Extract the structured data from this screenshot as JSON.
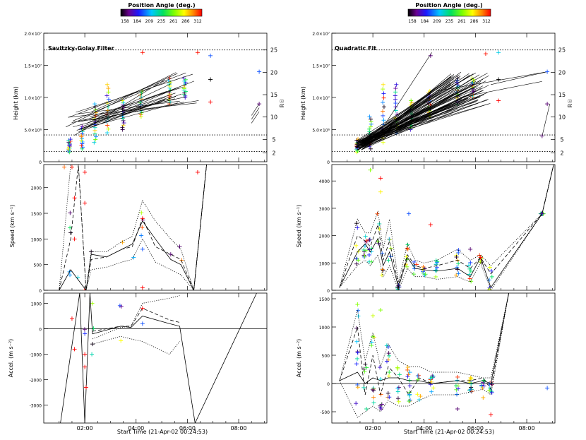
{
  "colorbar": {
    "title": "Position Angle (deg.)",
    "ticks": [
      "158",
      "184",
      "209",
      "235",
      "261",
      "286",
      "312"
    ]
  },
  "panels": {
    "left": {
      "title": "Savitzky-Golay Filter",
      "xlabel": "Start Time (21-Apr-02 00:24:53)",
      "xticks": [
        "02:00",
        "04:00",
        "06:00",
        "08:00"
      ],
      "height": {
        "ylabel": "Height (km)",
        "yticks": [
          "5.0×10⁶",
          "1.0×10⁷",
          "1.5×10⁷",
          "2.0×10⁷"
        ],
        "y0": "0",
        "rlabel": "R☉",
        "rticks": [
          "2",
          "5",
          "10",
          "15",
          "20",
          "25"
        ]
      },
      "speed": {
        "ylabel": "Speed (km s⁻¹)",
        "yticks": [
          "0",
          "500",
          "1000",
          "1500",
          "2000"
        ]
      },
      "accel": {
        "ylabel": "Accel. (m s⁻²)",
        "yticks": [
          "1000",
          "0",
          "-1000",
          "-2000",
          "-3000"
        ]
      }
    },
    "right": {
      "title": "Quadratic Fit",
      "xlabel": "Start Time (21-Apr-02 00:24:53)",
      "xticks": [
        "02:00",
        "04:00",
        "06:00",
        "08:00"
      ],
      "height": {
        "ylabel": "Height (km)",
        "yticks": [
          "5.0×10⁶",
          "1.0×10⁷",
          "1.5×10⁷",
          "2.0×10⁷"
        ],
        "y0": "0",
        "rlabel": "R☉",
        "rticks": [
          "2",
          "5",
          "10",
          "15",
          "20",
          "25"
        ]
      },
      "speed": {
        "ylabel": "Speed (km s⁻¹)",
        "yticks": [
          "0",
          "1000",
          "2000",
          "3000",
          "4000"
        ]
      },
      "accel": {
        "ylabel": "Accel. (m s⁻²)",
        "yticks": [
          "1500",
          "1000",
          "500",
          "0",
          "-500"
        ]
      }
    }
  },
  "chart_data": [
    {
      "type": "scatter",
      "title": "Savitzky-Golay Filter",
      "xlabel": "Start Time (21-Apr-02 00:24:53)",
      "ylabel": "Height (km)",
      "xlim": [
        0.4,
        9.1
      ],
      "ylim": [
        0,
        20000000
      ],
      "y2label": "R☉",
      "reference_lines_Rsun": [
        2.3,
        6,
        25
      ],
      "color_scale": {
        "label": "Position Angle (deg.)",
        "range": [
          158,
          312
        ]
      },
      "groups": [
        {
          "t": 1.4,
          "h": [
            1500000,
            3500000
          ],
          "pa": "mixed"
        },
        {
          "t": 1.9,
          "h": [
            2000000,
            5500000
          ],
          "pa": "mixed"
        },
        {
          "t": 2.4,
          "h": [
            3000000,
            9000000
          ],
          "pa": "mixed"
        },
        {
          "t": 2.9,
          "h": [
            4500000,
            12000000
          ],
          "pa": "mixed"
        },
        {
          "t": 3.5,
          "h": [
            5000000,
            9500000
          ],
          "pa": "mixed"
        },
        {
          "t": 4.2,
          "h": [
            7000000,
            11000000
          ],
          "pa": "mixed"
        },
        {
          "t": 5.3,
          "h": [
            9000000,
            13000000
          ],
          "pa": "mixed"
        },
        {
          "t": 5.9,
          "h": [
            10000000,
            13000000
          ],
          "pa": "mixed"
        }
      ],
      "outliers": [
        {
          "t": 4.25,
          "h": 17000000,
          "pa": 310
        },
        {
          "t": 6.4,
          "h": 17000000,
          "pa": 310
        },
        {
          "t": 6.9,
          "h": 16500000,
          "pa": 200
        },
        {
          "t": 6.9,
          "h": 12800000,
          "pa": 158
        },
        {
          "t": 6.9,
          "h": 9300000,
          "pa": 312
        },
        {
          "t": 8.8,
          "h": 14000000,
          "pa": 200
        },
        {
          "t": 8.8,
          "h": 9000000,
          "pa": 170
        }
      ]
    },
    {
      "type": "scatter",
      "title": "Quadratic Fit",
      "xlabel": "Start Time (21-Apr-02 00:24:53)",
      "ylabel": "Height (km)",
      "xlim": [
        0.4,
        9.1
      ],
      "ylim": [
        0,
        20000000
      ],
      "y2label": "R☉",
      "reference_lines_Rsun": [
        2.3,
        6,
        25
      ],
      "color_scale": {
        "label": "Position Angle (deg.)",
        "range": [
          158,
          312
        ]
      },
      "groups": [
        {
          "t": 1.4,
          "h": [
            1500000,
            3500000
          ],
          "pa": "mixed"
        },
        {
          "t": 1.9,
          "h": [
            2000000,
            7000000
          ],
          "pa": "mixed"
        },
        {
          "t": 2.4,
          "h": [
            3000000,
            12000000
          ],
          "pa": "mixed"
        },
        {
          "t": 2.9,
          "h": [
            4500000,
            12000000
          ],
          "pa": "mixed"
        },
        {
          "t": 3.5,
          "h": [
            5000000,
            9500000
          ],
          "pa": "mixed"
        },
        {
          "t": 4.2,
          "h": [
            7000000,
            11000000
          ],
          "pa": "mixed"
        },
        {
          "t": 5.3,
          "h": [
            9000000,
            13000000
          ],
          "pa": "mixed"
        },
        {
          "t": 5.9,
          "h": [
            10000000,
            13000000
          ],
          "pa": "mixed"
        }
      ],
      "outliers": [
        {
          "t": 4.25,
          "h": 16500000,
          "pa": 170
        },
        {
          "t": 6.4,
          "h": 16800000,
          "pa": 310
        },
        {
          "t": 6.9,
          "h": 17000000,
          "pa": 220
        },
        {
          "t": 6.9,
          "h": 12800000,
          "pa": 158
        },
        {
          "t": 6.9,
          "h": 9500000,
          "pa": 312
        },
        {
          "t": 8.8,
          "h": 14000000,
          "pa": 200
        },
        {
          "t": 8.6,
          "h": 4000000,
          "pa": 170
        },
        {
          "t": 8.8,
          "h": 9000000,
          "pa": 170
        }
      ]
    },
    {
      "type": "line",
      "title": "",
      "ylabel": "Speed (km s⁻¹)",
      "ylim": [
        0,
        2450
      ],
      "series": [
        {
          "style": "solid",
          "x": [
            1.0,
            1.45,
            1.75,
            2.05,
            2.25,
            2.85,
            3.45,
            3.85,
            4.25,
            4.75,
            5.35,
            5.75,
            6.25,
            6.75
          ],
          "values": [
            0,
            400,
            200,
            0,
            700,
            650,
            800,
            900,
            1350,
            1000,
            600,
            500,
            0,
            2450
          ]
        },
        {
          "style": "dashed",
          "x": [
            1.0,
            1.45,
            1.75,
            2.05,
            2.25,
            2.85,
            3.45,
            3.85,
            4.25,
            4.75,
            5.35,
            5.75,
            6.25,
            6.75
          ],
          "values": [
            0,
            1000,
            2450,
            0,
            600,
            650,
            800,
            850,
            1400,
            850,
            700,
            600,
            0,
            2450
          ]
        },
        {
          "style": "dotted",
          "x": [
            1.0,
            1.45,
            1.75,
            2.05,
            2.25,
            2.85,
            3.45,
            3.85,
            4.25,
            4.75,
            5.35,
            5.75,
            6.25,
            6.75
          ],
          "values": [
            0,
            2450,
            2450,
            0,
            750,
            750,
            950,
            1050,
            1750,
            1350,
            1000,
            800,
            0,
            2450
          ]
        },
        {
          "style": "dotted",
          "x": [
            1.0,
            1.45,
            1.75,
            2.05,
            2.25,
            2.85,
            3.45,
            3.85,
            4.25,
            4.75,
            5.35,
            5.75,
            6.25,
            6.75
          ],
          "values": [
            0,
            0,
            0,
            0,
            400,
            450,
            550,
            600,
            1000,
            550,
            400,
            300,
            0,
            2450
          ]
        }
      ],
      "points": [
        {
          "t": 1.2,
          "v": 2400,
          "pa": 300
        },
        {
          "t": 1.5,
          "v": 2400,
          "pa": 310
        },
        {
          "t": 1.6,
          "v": 1800,
          "pa": 312
        },
        {
          "t": 1.6,
          "v": 1000,
          "pa": 312
        },
        {
          "t": 2.0,
          "v": 2300,
          "pa": 312
        },
        {
          "t": 2.0,
          "v": 1700,
          "pa": 312
        },
        {
          "t": 2.25,
          "v": 750,
          "pa": 160
        },
        {
          "t": 4.25,
          "v": 1400,
          "pa": 312
        },
        {
          "t": 4.25,
          "v": 50,
          "pa": 312
        },
        {
          "t": 6.4,
          "v": 2300,
          "pa": 312
        },
        {
          "t": 5.7,
          "v": 850,
          "pa": 170
        },
        {
          "t": 5.35,
          "v": 700,
          "pa": 170
        },
        {
          "t": 4.25,
          "v": 800,
          "pa": 200
        }
      ]
    },
    {
      "type": "line",
      "title": "",
      "ylabel": "Accel. (m s⁻²)",
      "ylim": [
        -3700,
        1400
      ],
      "series": [
        {
          "style": "solid",
          "x": [
            1.05,
            1.8,
            2.0,
            2.2,
            2.3,
            3.4,
            3.8,
            4.25,
            5.3,
            5.7,
            6.3,
            8.7
          ],
          "values": [
            -3700,
            1400,
            -3700,
            1400,
            -200,
            100,
            50,
            500,
            200,
            100,
            -3700,
            1400
          ]
        },
        {
          "style": "dashed",
          "x": [
            2.3,
            3.4,
            3.8,
            4.25,
            5.3,
            5.7
          ],
          "values": [
            -100,
            100,
            100,
            800,
            350,
            250
          ]
        },
        {
          "style": "dotted",
          "x": [
            2.3,
            3.4,
            3.8,
            4.25,
            5.3,
            5.7
          ],
          "values": [
            -400,
            50,
            100,
            1000,
            1200,
            1300
          ]
        },
        {
          "style": "dotted",
          "x": [
            2.3,
            3.4,
            3.8,
            4.25,
            5.3,
            5.7
          ],
          "values": [
            -600,
            -300,
            -400,
            -500,
            -1000,
            -500
          ]
        }
      ],
      "zero_line": true,
      "points": [
        {
          "t": 1.5,
          "v": 400,
          "pa": 312
        },
        {
          "t": 1.6,
          "v": -800,
          "pa": 312
        },
        {
          "t": 2.0,
          "v": -1000,
          "pa": 312
        },
        {
          "t": 2.0,
          "v": -1500,
          "pa": 312
        },
        {
          "t": 2.05,
          "v": -2300,
          "pa": 312
        },
        {
          "t": 4.25,
          "v": 800,
          "pa": 312
        },
        {
          "t": 2.3,
          "v": -600,
          "pa": 160
        },
        {
          "t": 4.25,
          "v": 200,
          "pa": 200
        }
      ]
    },
    {
      "type": "line",
      "title": "",
      "ylabel": "Speed (km s⁻¹)",
      "ylim": [
        0,
        4600
      ],
      "series": [
        {
          "style": "solid",
          "x": [
            0.7,
            1.4,
            1.7,
            1.9,
            2.2,
            2.4,
            2.65,
            3.0,
            3.35,
            3.65,
            4.0,
            4.5,
            5.3,
            5.8,
            6.2,
            6.6,
            8.6,
            9.05
          ],
          "values": [
            100,
            1400,
            1700,
            1400,
            1900,
            900,
            1400,
            100,
            1200,
            800,
            750,
            700,
            800,
            500,
            1200,
            100,
            2800,
            4600
          ]
        },
        {
          "style": "dashed",
          "x": [
            0.7,
            1.4,
            1.7,
            1.9,
            2.2,
            2.4,
            2.65,
            3.0,
            3.35,
            3.65,
            4.0,
            4.5,
            5.3,
            5.8,
            6.2,
            6.6,
            8.6,
            9.05
          ],
          "values": [
            100,
            2000,
            1800,
            1600,
            2400,
            1100,
            1800,
            200,
            1300,
            900,
            800,
            900,
            1100,
            800,
            1200,
            600,
            2800,
            4600
          ]
        },
        {
          "style": "dotted",
          "x": [
            0.7,
            1.4,
            1.7,
            1.9,
            2.2,
            2.4,
            2.65,
            3.0,
            3.35,
            3.65,
            4.0,
            4.5,
            5.3,
            5.8,
            6.2,
            6.6,
            8.6,
            9.05
          ],
          "values": [
            100,
            2600,
            2100,
            2100,
            2900,
            1500,
            2600,
            300,
            1700,
            1100,
            1000,
            1100,
            1500,
            1100,
            1300,
            900,
            2800,
            4600
          ]
        },
        {
          "style": "dotted",
          "x": [
            0.7,
            1.4,
            1.7,
            1.9,
            2.2,
            2.4,
            2.65,
            3.0,
            3.35,
            3.65,
            4.0,
            4.5,
            5.3,
            5.8,
            6.2,
            6.6,
            8.6,
            9.05
          ],
          "values": [
            100,
            900,
            1100,
            900,
            1300,
            500,
            900,
            0,
            800,
            500,
            500,
            400,
            500,
            300,
            1000,
            0,
            2800,
            4600
          ]
        }
      ],
      "points": [
        {
          "t": 1.9,
          "v": 4400,
          "pa": 260
        },
        {
          "t": 2.3,
          "v": 4100,
          "pa": 312
        },
        {
          "t": 2.3,
          "v": 3600,
          "pa": 280
        },
        {
          "t": 4.25,
          "v": 2400,
          "pa": 312
        },
        {
          "t": 3.4,
          "v": 2800,
          "pa": 200
        },
        {
          "t": 8.6,
          "v": 2800,
          "pa": 170
        },
        {
          "t": 6.2,
          "v": 1200,
          "pa": 312
        },
        {
          "t": 5.8,
          "v": 1500,
          "pa": 170
        }
      ]
    },
    {
      "type": "line",
      "title": "",
      "ylabel": "Accel. (m s⁻²)",
      "ylim": [
        -700,
        1600
      ],
      "series": [
        {
          "style": "solid",
          "x": [
            0.7,
            1.4,
            1.7,
            2.0,
            2.3,
            2.6,
            3.0,
            3.4,
            3.8,
            4.3,
            5.3,
            5.8,
            6.3,
            6.6,
            7.3
          ],
          "values": [
            50,
            200,
            0,
            100,
            50,
            100,
            100,
            50,
            50,
            0,
            50,
            0,
            50,
            0,
            1600
          ]
        },
        {
          "style": "dashed",
          "x": [
            0.7,
            1.4,
            1.7,
            2.0,
            2.3,
            2.6,
            3.0,
            3.4,
            3.8,
            4.3,
            5.3,
            5.8,
            6.3,
            6.6,
            7.3
          ],
          "values": [
            50,
            1000,
            -200,
            500,
            -200,
            300,
            100,
            -200,
            100,
            0,
            50,
            50,
            100,
            -100,
            1600
          ]
        },
        {
          "style": "dotted",
          "x": [
            0.7,
            1.4,
            1.7,
            2.0,
            2.3,
            2.6,
            3.0,
            3.4,
            3.8,
            4.3,
            5.3,
            5.8,
            6.3,
            6.6,
            7.3
          ],
          "values": [
            50,
            1300,
            400,
            900,
            300,
            700,
            400,
            300,
            300,
            200,
            200,
            150,
            100,
            100,
            1600
          ]
        },
        {
          "style": "dotted",
          "x": [
            0.7,
            1.4,
            1.7,
            2.0,
            2.3,
            2.6,
            3.0,
            3.4,
            3.8,
            4.3,
            5.3,
            5.8,
            6.3,
            6.6,
            7.3
          ],
          "values": [
            50,
            -600,
            -500,
            -400,
            -500,
            -300,
            -400,
            -400,
            -300,
            -200,
            -200,
            -150,
            -100,
            -200,
            1600
          ]
        }
      ],
      "zero_line": true,
      "points": [
        {
          "t": 1.4,
          "v": 1400,
          "pa": 260
        },
        {
          "t": 2.0,
          "v": 1200,
          "pa": 270
        },
        {
          "t": 2.3,
          "v": 1300,
          "pa": 260
        },
        {
          "t": 6.3,
          "v": -250,
          "pa": 290
        },
        {
          "t": 6.6,
          "v": -550,
          "pa": 312
        },
        {
          "t": 8.8,
          "v": -80,
          "pa": 200
        },
        {
          "t": 5.3,
          "v": -450,
          "pa": 170
        }
      ]
    }
  ]
}
